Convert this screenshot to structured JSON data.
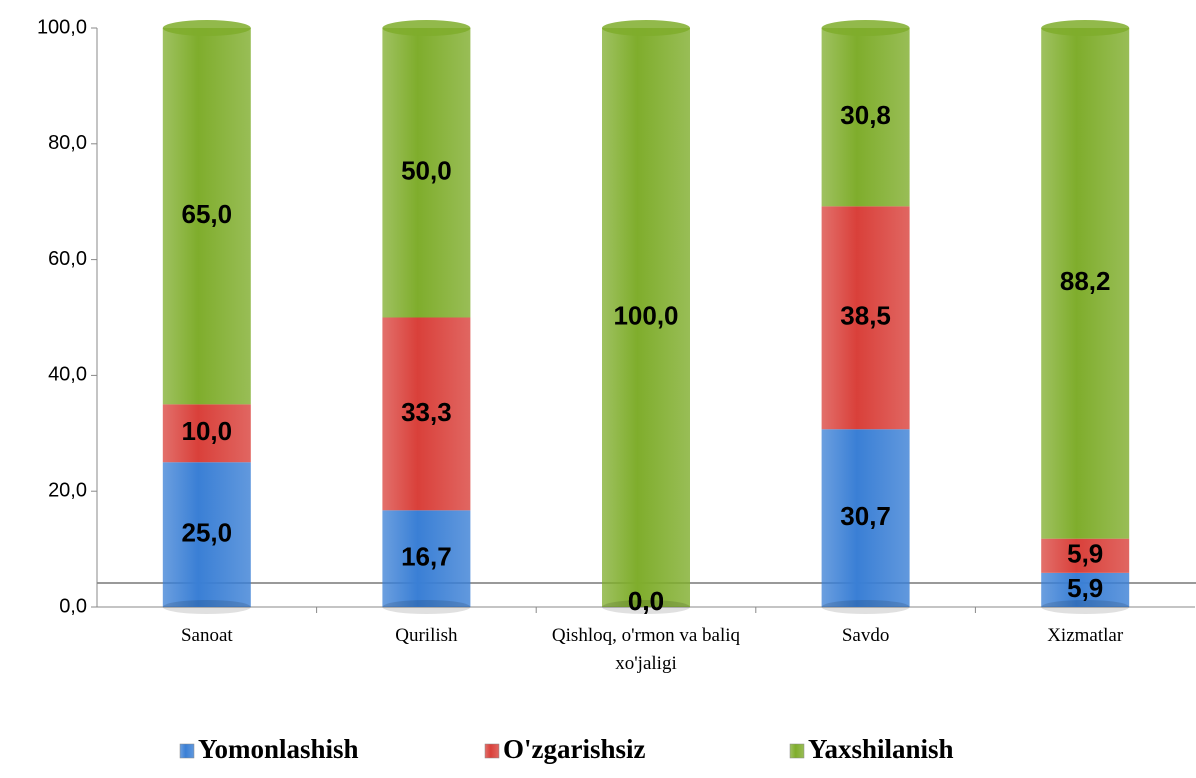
{
  "chart_data": {
    "type": "bar",
    "stacked": true,
    "categories": [
      "Sanoat",
      "Qurilish",
      "Qishloq, o'rmon va baliq xo'jaligi",
      "Savdo",
      "Xizmatlar"
    ],
    "series": [
      {
        "name": "Yomonlashish",
        "color": "#3a7fd5",
        "values": [
          25.0,
          16.7,
          0.0,
          30.7,
          5.9
        ],
        "value_labels": [
          "25,0",
          "16,7",
          "0,0",
          "30,7",
          "5,9"
        ]
      },
      {
        "name": "O'zgarishsiz",
        "color": "#d9403a",
        "values": [
          10.0,
          33.3,
          0.0,
          38.5,
          5.9
        ],
        "value_labels": [
          "10,0",
          "33,3",
          "0,0",
          "38,5",
          "5,9"
        ]
      },
      {
        "name": "Yaxshilanish",
        "color": "#7fad2c",
        "values": [
          65.0,
          50.0,
          100.0,
          30.8,
          88.2
        ],
        "value_labels": [
          "65,0",
          "50,0",
          "100,0",
          "30,8",
          "88,2"
        ]
      }
    ],
    "ylim": [
      0,
      100
    ],
    "yticks": [
      {
        "value": 0,
        "label": "0,0"
      },
      {
        "value": 20,
        "label": "20,0"
      },
      {
        "value": 40,
        "label": "40,0"
      },
      {
        "value": 60,
        "label": "60,0"
      },
      {
        "value": 80,
        "label": "80,0"
      },
      {
        "value": 100,
        "label": "100,0"
      }
    ],
    "legend": "bottom"
  }
}
